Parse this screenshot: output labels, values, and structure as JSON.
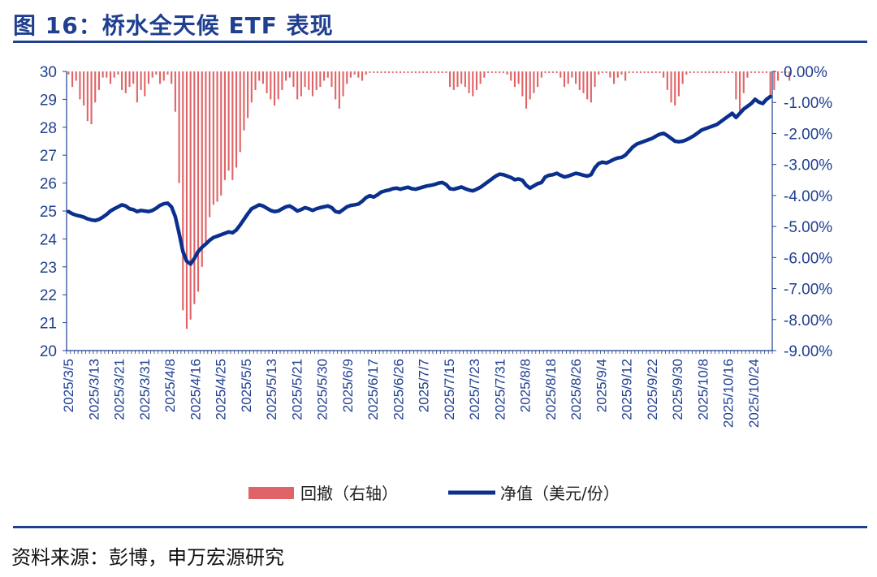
{
  "title": "图 16：桥水全天候 ETF 表现",
  "source": "资料来源：彭博，申万宏源研究",
  "colors": {
    "accent": "#1f3f8f",
    "line": "#0a2f8c",
    "bar": "#e06467"
  },
  "legend": {
    "bar_label": "回撤（右轴）",
    "line_label": "净值（美元/份）"
  },
  "chart_data": {
    "type": "bar+line",
    "x_tick_labels": [
      "2025/3/5",
      "2025/3/13",
      "2025/3/21",
      "2025/3/31",
      "2025/4/8",
      "2025/4/16",
      "2025/4/25",
      "2025/5/5",
      "2025/5/13",
      "2025/5/21",
      "2025/5/30",
      "2025/6/9",
      "2025/6/17",
      "2025/6/26",
      "2025/7/7",
      "2025/7/15",
      "2025/7/23",
      "2025/7/31",
      "2025/8/8",
      "2025/8/18",
      "2025/8/26",
      "2025/9/4",
      "2025/9/12",
      "2025/9/22",
      "2025/9/30",
      "2025/10/8",
      "2025/10/16",
      "2025/10/24"
    ],
    "y_left": {
      "ticks": [
        "20",
        "21",
        "22",
        "23",
        "24",
        "25",
        "26",
        "27",
        "28",
        "29",
        "30"
      ],
      "ylim": [
        20,
        30
      ]
    },
    "y_right": {
      "ticks": [
        "0.00%",
        "-1.00%",
        "-2.00%",
        "-3.00%",
        "-4.00%",
        "-5.00%",
        "-6.00%",
        "-7.00%",
        "-8.00%",
        "-9.00%"
      ],
      "ylim": [
        -9,
        0
      ]
    },
    "series": [
      {
        "name": "净值（美元/份）",
        "type": "line",
        "axis": "left",
        "values": [
          24.98,
          24.9,
          24.85,
          24.82,
          24.78,
          24.72,
          24.68,
          24.66,
          24.7,
          24.78,
          24.88,
          25.0,
          25.08,
          25.15,
          25.22,
          25.18,
          25.08,
          25.05,
          24.98,
          25.02,
          25.0,
          24.98,
          25.02,
          25.1,
          25.2,
          25.26,
          25.28,
          25.15,
          24.8,
          24.2,
          23.55,
          23.2,
          23.1,
          23.3,
          23.55,
          23.7,
          23.82,
          23.95,
          24.05,
          24.1,
          24.15,
          24.2,
          24.25,
          24.22,
          24.32,
          24.5,
          24.7,
          24.9,
          25.08,
          25.15,
          25.22,
          25.18,
          25.1,
          25.02,
          24.98,
          25.0,
          25.08,
          25.15,
          25.18,
          25.1,
          25.0,
          25.05,
          25.12,
          25.08,
          25.02,
          25.08,
          25.12,
          25.15,
          25.18,
          25.12,
          24.98,
          24.95,
          25.05,
          25.15,
          25.2,
          25.22,
          25.25,
          25.35,
          25.48,
          25.55,
          25.5,
          25.58,
          25.68,
          25.72,
          25.75,
          25.8,
          25.82,
          25.78,
          25.82,
          25.85,
          25.8,
          25.78,
          25.82,
          25.86,
          25.9,
          25.92,
          25.95,
          26.0,
          26.02,
          25.95,
          25.8,
          25.78,
          25.82,
          25.86,
          25.8,
          25.75,
          25.72,
          25.78,
          25.85,
          25.95,
          26.05,
          26.15,
          26.25,
          26.32,
          26.3,
          26.25,
          26.2,
          26.12,
          26.15,
          26.1,
          25.92,
          25.82,
          25.9,
          25.98,
          26.02,
          26.22,
          26.28,
          26.3,
          26.35,
          26.28,
          26.22,
          26.25,
          26.3,
          26.35,
          26.32,
          26.28,
          26.25,
          26.3,
          26.55,
          26.7,
          26.75,
          26.72,
          26.78,
          26.85,
          26.9,
          26.92,
          27.0,
          27.15,
          27.3,
          27.4,
          27.45,
          27.5,
          27.55,
          27.6,
          27.68,
          27.75,
          27.78,
          27.7,
          27.6,
          27.5,
          27.48,
          27.5,
          27.55,
          27.62,
          27.7,
          27.8,
          27.9,
          27.95,
          28.0,
          28.05,
          28.1,
          28.2,
          28.3,
          28.4,
          28.5,
          28.35,
          28.5,
          28.65,
          28.75,
          28.85,
          29.0,
          28.9,
          28.85,
          29.0,
          29.1
        ]
      },
      {
        "name": "回撤（右轴）",
        "type": "bar",
        "axis": "right",
        "values": [
          -0.1,
          -0.5,
          -0.3,
          -0.9,
          -1.1,
          -1.6,
          -1.7,
          -1.0,
          -0.6,
          -0.2,
          -0.2,
          -0.4,
          -0.2,
          -0.1,
          -0.6,
          -0.7,
          -0.5,
          -0.4,
          -1.0,
          -0.6,
          -0.8,
          -0.4,
          -0.2,
          -0.1,
          -0.4,
          -0.3,
          -0.1,
          -0.4,
          -1.3,
          -3.6,
          -7.7,
          -8.3,
          -8.0,
          -7.5,
          -7.1,
          -6.3,
          -5.5,
          -4.7,
          -4.3,
          -4.2,
          -4.0,
          -3.5,
          -3.2,
          -3.5,
          -3.1,
          -2.6,
          -1.9,
          -1.5,
          -1.0,
          -0.6,
          -0.3,
          -0.4,
          -0.7,
          -0.9,
          -1.1,
          -0.9,
          -0.6,
          -0.3,
          -0.2,
          -0.5,
          -0.9,
          -0.8,
          -0.5,
          -0.6,
          -0.8,
          -0.6,
          -0.5,
          -0.3,
          -0.2,
          -0.5,
          -0.9,
          -1.2,
          -0.8,
          -0.4,
          -0.2,
          -0.1,
          -0.2,
          -0.3,
          -0.1,
          -0.05,
          -0.05,
          -0.05,
          -0.05,
          -0.05,
          -0.05,
          -0.05,
          -0.05,
          -0.05,
          -0.05,
          -0.05,
          -0.05,
          -0.05,
          -0.05,
          -0.05,
          -0.05,
          -0.05,
          -0.05,
          -0.05,
          -0.05,
          -0.05,
          -0.5,
          -0.6,
          -0.5,
          -0.4,
          -0.5,
          -0.7,
          -0.8,
          -0.6,
          -0.4,
          -0.2,
          -0.05,
          -0.05,
          -0.05,
          -0.05,
          -0.05,
          -0.1,
          -0.3,
          -0.5,
          -0.4,
          -0.8,
          -1.2,
          -0.9,
          -0.7,
          -0.5,
          -0.2,
          -0.05,
          -0.05,
          -0.05,
          -0.05,
          -0.2,
          -0.5,
          -0.4,
          -0.2,
          -0.4,
          -0.6,
          -0.7,
          -0.9,
          -1.0,
          -0.5,
          -0.1,
          -0.05,
          -0.05,
          -0.2,
          -0.4,
          -0.2,
          -0.1,
          -0.3,
          -0.05,
          -0.05,
          -0.05,
          -0.05,
          -0.05,
          -0.05,
          -0.05,
          -0.05,
          -0.05,
          -0.2,
          -0.6,
          -1.0,
          -1.1,
          -0.8,
          -0.4,
          -0.1,
          -0.05,
          -0.05,
          -0.05,
          -0.05,
          -0.05,
          -0.05,
          -0.05,
          -0.05,
          -0.05,
          -0.05,
          -0.05,
          -0.05,
          -0.9,
          -1.3,
          -0.7,
          -0.2,
          -0.05,
          -0.05,
          -0.05,
          -0.05,
          -0.05,
          -0.8,
          -0.6,
          -0.3,
          -0.05,
          -0.05,
          -0.3
        ]
      }
    ]
  }
}
